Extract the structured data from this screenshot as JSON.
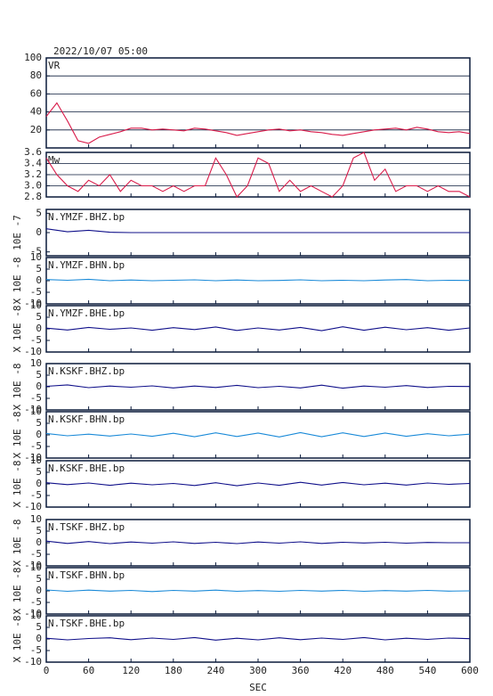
{
  "chart_data": [
    {
      "type": "line",
      "title": "2022/10/07 05:00",
      "label": "VR",
      "color": "#d81b4a",
      "grid": true,
      "ylim": [
        0,
        100
      ],
      "yticks": [
        20,
        40,
        60,
        80,
        100
      ],
      "x": [
        0,
        15,
        30,
        45,
        60,
        75,
        90,
        105,
        120,
        135,
        150,
        165,
        180,
        195,
        210,
        225,
        240,
        255,
        270,
        285,
        300,
        315,
        330,
        345,
        360,
        375,
        390,
        405,
        420,
        435,
        450,
        465,
        480,
        495,
        510,
        525,
        540,
        555,
        570,
        585,
        600
      ],
      "values": [
        35,
        50,
        30,
        8,
        5,
        12,
        15,
        18,
        22,
        22,
        20,
        21,
        20,
        19,
        22,
        21,
        19,
        17,
        14,
        16,
        18,
        20,
        21,
        19,
        20,
        18,
        17,
        15,
        14,
        16,
        18,
        20,
        21,
        22,
        20,
        23,
        21,
        18,
        17,
        18,
        16
      ]
    },
    {
      "type": "line",
      "label": "Mw",
      "color": "#d81b4a",
      "grid": true,
      "ylim": [
        2.8,
        3.6
      ],
      "yticks": [
        {
          "value": 2.8,
          "label": "2.8"
        },
        {
          "value": 3,
          "label": "3.0"
        },
        {
          "value": 3.2,
          "label": "3.2"
        },
        {
          "value": 3.4,
          "label": "3.4"
        },
        {
          "value": 3.6,
          "label": "3.6"
        }
      ],
      "x": [
        0,
        15,
        30,
        45,
        60,
        75,
        90,
        105,
        120,
        135,
        150,
        165,
        180,
        195,
        210,
        225,
        240,
        255,
        270,
        285,
        300,
        315,
        330,
        345,
        360,
        375,
        390,
        405,
        420,
        435,
        450,
        465,
        480,
        495,
        510,
        525,
        540,
        555,
        570,
        585,
        600
      ],
      "values": [
        3.5,
        3.2,
        3.0,
        2.9,
        3.1,
        3.0,
        3.2,
        2.9,
        3.1,
        3.0,
        3.0,
        2.9,
        3.0,
        2.9,
        3.0,
        3.0,
        3.5,
        3.2,
        2.8,
        3.0,
        3.5,
        3.4,
        2.9,
        3.1,
        2.9,
        3.0,
        2.9,
        2.8,
        3.0,
        3.5,
        3.6,
        3.1,
        3.3,
        2.9,
        3.0,
        3.0,
        2.9,
        3.0,
        2.9,
        2.9,
        2.8
      ]
    },
    {
      "type": "line",
      "label": "N.YMZF.BHZ.bp",
      "y_label": "10E -7",
      "color": "#10108a",
      "ylim": [
        -6,
        6
      ],
      "yticks": [
        -5,
        0,
        5
      ],
      "x": [
        0,
        30,
        60,
        90,
        120,
        150,
        180,
        210,
        240,
        270,
        300,
        330,
        360,
        390,
        420,
        450,
        480,
        510,
        540,
        570,
        600
      ],
      "values": [
        1,
        0.2,
        0.6,
        0.1,
        0,
        0,
        0,
        0,
        0,
        0,
        0,
        0,
        0,
        0,
        0,
        0,
        0,
        0,
        0,
        0,
        0
      ]
    },
    {
      "type": "line",
      "label": "N.YMZF.BHN.bp",
      "y_label": "X 10E -8",
      "color": "#1a8ad8",
      "ylim": [
        -10,
        10
      ],
      "yticks": [
        -10,
        -5,
        0,
        5,
        10
      ],
      "x": [
        0,
        30,
        60,
        90,
        120,
        150,
        180,
        210,
        240,
        270,
        300,
        330,
        360,
        390,
        420,
        450,
        480,
        510,
        540,
        570,
        600
      ],
      "values": [
        0.5,
        0.2,
        0.6,
        0,
        0.3,
        0,
        0.2,
        0.4,
        0,
        0.3,
        0,
        0.1,
        0.4,
        0,
        0.2,
        0,
        0.3,
        0.5,
        0,
        0.2,
        0.1
      ]
    },
    {
      "type": "line",
      "label": "N.YMZF.BHE.bp",
      "y_label": "X 10E -8",
      "color": "#10108a",
      "ylim": [
        -10,
        10
      ],
      "yticks": [
        -10,
        -5,
        0,
        5,
        10
      ],
      "x": [
        0,
        30,
        60,
        90,
        120,
        150,
        180,
        210,
        240,
        270,
        300,
        330,
        360,
        390,
        420,
        450,
        480,
        510,
        540,
        570,
        600
      ],
      "values": [
        0.3,
        -0.5,
        0.6,
        -0.2,
        0.4,
        -0.6,
        0.5,
        -0.3,
        0.8,
        -0.7,
        0.4,
        -0.5,
        0.6,
        -0.8,
        0.9,
        -0.6,
        0.7,
        -0.4,
        0.5,
        -0.6,
        0.4
      ]
    },
    {
      "type": "line",
      "label": "N.KSKF.BHZ.bp",
      "y_label": "X 10E -8",
      "color": "#10108a",
      "ylim": [
        -10,
        10
      ],
      "yticks": [
        -10,
        -5,
        0,
        5,
        10
      ],
      "x": [
        0,
        30,
        60,
        90,
        120,
        150,
        180,
        210,
        240,
        270,
        300,
        330,
        360,
        390,
        420,
        450,
        480,
        510,
        540,
        570,
        600
      ],
      "values": [
        0.2,
        0.8,
        -0.4,
        0.3,
        -0.2,
        0.4,
        -0.5,
        0.3,
        -0.3,
        0.6,
        -0.4,
        0.2,
        -0.5,
        0.7,
        -0.6,
        0.3,
        -0.2,
        0.5,
        -0.3,
        0.2,
        0.1
      ]
    },
    {
      "type": "line",
      "label": "N.KSKF.BHN.bp",
      "y_label": "X 10E -8",
      "color": "#1a8ad8",
      "ylim": [
        -10,
        10
      ],
      "yticks": [
        -10,
        -5,
        0,
        5,
        10
      ],
      "x": [
        0,
        30,
        60,
        90,
        120,
        150,
        180,
        210,
        240,
        270,
        300,
        330,
        360,
        390,
        420,
        450,
        480,
        510,
        540,
        570,
        600
      ],
      "values": [
        0.6,
        -0.4,
        0.3,
        -0.5,
        0.4,
        -0.6,
        0.7,
        -0.8,
        0.9,
        -0.7,
        0.8,
        -0.9,
        1,
        -0.8,
        0.9,
        -0.7,
        0.8,
        -0.6,
        0.5,
        -0.4,
        0.3
      ]
    },
    {
      "type": "line",
      "label": "N.KSKF.BHE.bp",
      "y_label": "X 10E -8",
      "color": "#10108a",
      "ylim": [
        -10,
        10
      ],
      "yticks": [
        -10,
        -5,
        0,
        5,
        10
      ],
      "x": [
        0,
        30,
        60,
        90,
        120,
        150,
        180,
        210,
        240,
        270,
        300,
        330,
        360,
        390,
        420,
        450,
        480,
        510,
        540,
        570,
        600
      ],
      "values": [
        0.5,
        -0.3,
        0.4,
        -0.6,
        0.3,
        -0.4,
        0.2,
        -0.7,
        0.5,
        -0.8,
        0.4,
        -0.6,
        0.7,
        -0.5,
        0.6,
        -0.4,
        0.3,
        -0.5,
        0.4,
        -0.2,
        0.2
      ]
    },
    {
      "type": "line",
      "label": "N.TSKF.BHZ.bp",
      "y_label": "X 10E -8",
      "color": "#10108a",
      "ylim": [
        -10,
        10
      ],
      "yticks": [
        -10,
        -5,
        0,
        5,
        10
      ],
      "x": [
        0,
        30,
        60,
        90,
        120,
        150,
        180,
        210,
        240,
        270,
        300,
        330,
        360,
        390,
        420,
        450,
        480,
        510,
        540,
        570,
        600
      ],
      "values": [
        0.7,
        -0.3,
        0.5,
        -0.4,
        0.3,
        -0.2,
        0.4,
        -0.3,
        0.2,
        -0.4,
        0.3,
        -0.2,
        0.4,
        -0.3,
        0.2,
        -0.1,
        0.2,
        -0.2,
        0.1,
        0,
        0
      ]
    },
    {
      "type": "line",
      "label": "N.TSKF.BHN.bp",
      "y_label": "X 10E -8",
      "color": "#1a8ad8",
      "ylim": [
        -10,
        10
      ],
      "yticks": [
        -10,
        -5,
        0,
        5,
        10
      ],
      "x": [
        0,
        30,
        60,
        90,
        120,
        150,
        180,
        210,
        240,
        270,
        300,
        330,
        360,
        390,
        420,
        450,
        480,
        510,
        540,
        570,
        600
      ],
      "values": [
        0.4,
        -0.2,
        0.3,
        -0.1,
        0.2,
        -0.3,
        0.2,
        -0.1,
        0.3,
        -0.2,
        0.1,
        -0.2,
        0.2,
        -0.1,
        0.2,
        -0.2,
        0.1,
        -0.1,
        0.2,
        -0.1,
        0
      ]
    },
    {
      "type": "line",
      "label": "N.TSKF.BHE.bp",
      "y_label": "X 10E -8",
      "color": "#10108a",
      "ylim": [
        -10,
        10
      ],
      "yticks": [
        -10,
        -5,
        0,
        5,
        10
      ],
      "x": [
        0,
        30,
        60,
        90,
        120,
        150,
        180,
        210,
        240,
        270,
        300,
        330,
        360,
        390,
        420,
        450,
        480,
        510,
        540,
        570,
        600
      ],
      "values": [
        0.3,
        -0.4,
        0.2,
        0.5,
        -0.3,
        0.4,
        -0.2,
        0.6,
        -0.5,
        0.3,
        -0.4,
        0.5,
        -0.3,
        0.4,
        -0.2,
        0.6,
        -0.4,
        0.3,
        -0.2,
        0.4,
        0.1
      ],
      "x_label": "SEC",
      "xlim": [
        0,
        600
      ],
      "xticks": [
        0,
        60,
        120,
        180,
        240,
        300,
        360,
        420,
        480,
        540,
        600
      ]
    }
  ]
}
